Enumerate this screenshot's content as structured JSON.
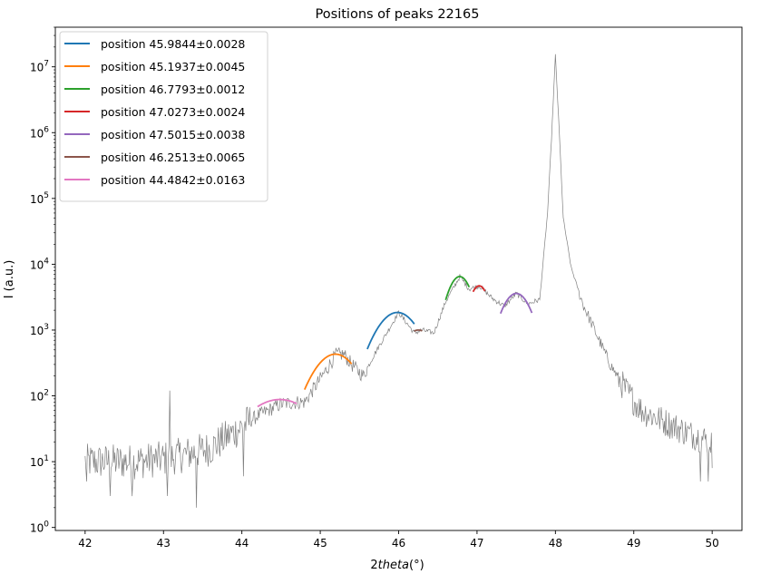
{
  "chart_data": {
    "type": "line",
    "title": "Positions of peaks 22165",
    "xlabel_prefix": "2",
    "xlabel_italic": "theta",
    "xlabel_suffix": "(°)",
    "ylabel": "I (a.u.)",
    "xlim": [
      41.62,
      50.38
    ],
    "ylim": [
      0.9,
      40000000
    ],
    "yscale": "log",
    "grid": false,
    "legend_position": "top-left",
    "xticks": [
      42,
      43,
      44,
      45,
      46,
      47,
      48,
      49,
      50
    ],
    "yticks": [
      {
        "value": 1,
        "exp": "0"
      },
      {
        "value": 10,
        "exp": "1"
      },
      {
        "value": 100,
        "exp": "2"
      },
      {
        "value": 1000,
        "exp": "3"
      },
      {
        "value": 10000,
        "exp": "4"
      },
      {
        "value": 100000,
        "exp": "5"
      },
      {
        "value": 1000000,
        "exp": "6"
      },
      {
        "value": 10000000,
        "exp": "7"
      }
    ],
    "raw_color": "#808080",
    "raw_control_points": [
      [
        42.0,
        10
      ],
      [
        42.3,
        10
      ],
      [
        42.6,
        10
      ],
      [
        43.0,
        11
      ],
      [
        43.3,
        13
      ],
      [
        43.6,
        16
      ],
      [
        43.9,
        28
      ],
      [
        44.2,
        50
      ],
      [
        44.5,
        75
      ],
      [
        44.7,
        80
      ],
      [
        44.8,
        80
      ],
      [
        45.0,
        180
      ],
      [
        45.2,
        420
      ],
      [
        45.3,
        430
      ],
      [
        45.4,
        300
      ],
      [
        45.55,
        200
      ],
      [
        45.7,
        450
      ],
      [
        46.0,
        1850
      ],
      [
        46.2,
        900
      ],
      [
        46.3,
        1000
      ],
      [
        46.45,
        900
      ],
      [
        46.6,
        2700
      ],
      [
        46.78,
        6500
      ],
      [
        46.9,
        4200
      ],
      [
        47.03,
        4700
      ],
      [
        47.2,
        3000
      ],
      [
        47.35,
        2300
      ],
      [
        47.5,
        3600
      ],
      [
        47.65,
        2500
      ],
      [
        47.8,
        2900
      ],
      [
        47.9,
        60000
      ],
      [
        47.95,
        800000
      ],
      [
        48.0,
        15000000
      ],
      [
        48.05,
        1000000
      ],
      [
        48.1,
        50000
      ],
      [
        48.2,
        9000
      ],
      [
        48.35,
        2500
      ],
      [
        48.5,
        1000
      ],
      [
        48.7,
        300
      ],
      [
        48.9,
        120
      ],
      [
        49.1,
        60
      ],
      [
        49.4,
        40
      ],
      [
        49.7,
        27
      ],
      [
        50.0,
        20
      ]
    ],
    "raw_spikes": [
      [
        42.02,
        1.0
      ],
      [
        42.02,
        5
      ],
      [
        43.08,
        120
      ],
      [
        43.05,
        3
      ],
      [
        43.42,
        2.0
      ],
      [
        42.32,
        3
      ],
      [
        42.6,
        3
      ],
      [
        44.02,
        6
      ],
      [
        49.85,
        5
      ],
      [
        49.95,
        5
      ],
      [
        50.0,
        8
      ]
    ],
    "series": [
      {
        "name": "position 45.9844±0.0028",
        "color": "#1f77b4",
        "center": 45.9844,
        "peak": 1850,
        "width": 0.24,
        "xmin": 45.6,
        "xmax": 46.2
      },
      {
        "name": "position 45.1937±0.0045",
        "color": "#ff7f0e",
        "center": 45.1937,
        "peak": 430,
        "width": 0.25,
        "xmin": 44.8,
        "xmax": 45.4
      },
      {
        "name": "position 46.7793±0.0012",
        "color": "#2ca02c",
        "center": 46.7793,
        "peak": 6500,
        "width": 0.14,
        "xmin": 46.6,
        "xmax": 46.9
      },
      {
        "name": "position 47.0273±0.0024",
        "color": "#d62728",
        "center": 47.0273,
        "peak": 4700,
        "width": 0.12,
        "xmin": 46.95,
        "xmax": 47.1
      },
      {
        "name": "position 47.5015±0.0038",
        "color": "#9467bd",
        "center": 47.5015,
        "peak": 3600,
        "width": 0.17,
        "xmin": 47.3,
        "xmax": 47.7
      },
      {
        "name": "position 46.2513±0.0065",
        "color": "#8c564b",
        "center": 46.2513,
        "peak": 1000,
        "width": 0.2,
        "xmin": 46.2,
        "xmax": 46.3
      },
      {
        "name": "position 44.4842±0.0163",
        "color": "#e377c2",
        "center": 44.4842,
        "peak": 88,
        "width": 0.4,
        "xmin": 44.2,
        "xmax": 44.7
      }
    ]
  }
}
